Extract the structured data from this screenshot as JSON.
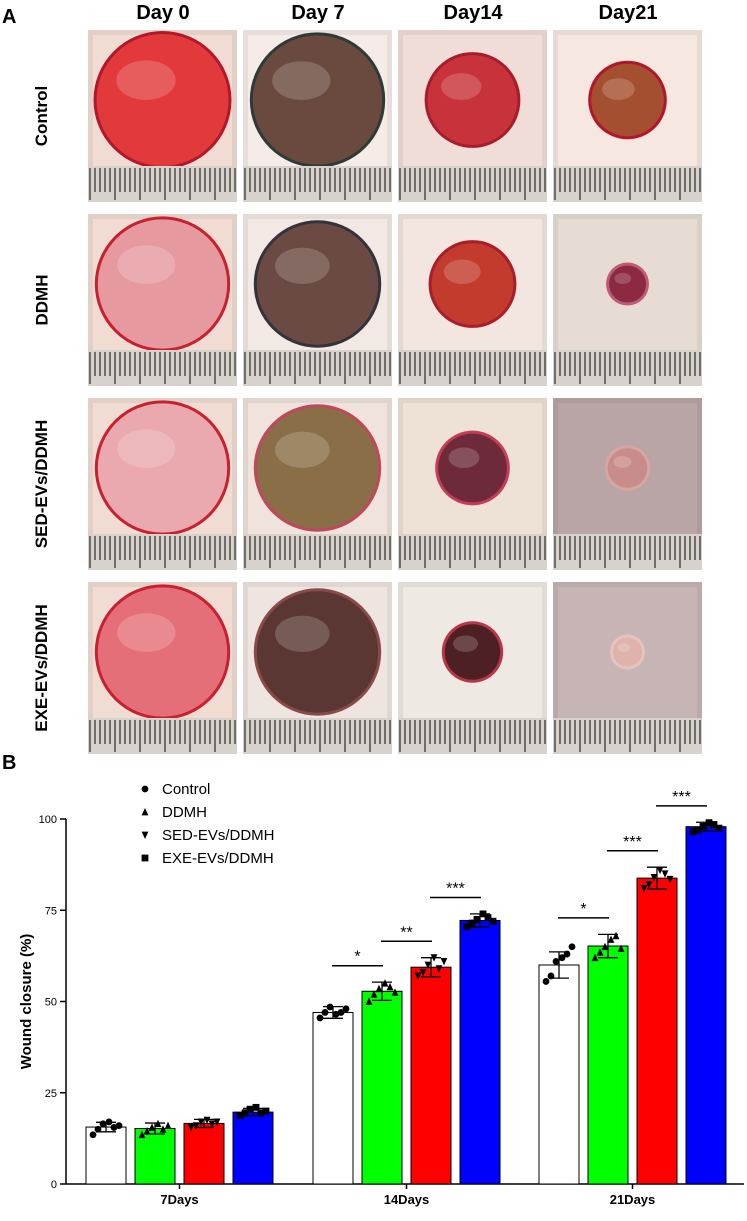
{
  "figure": {
    "panel_a_label": "A",
    "panel_b_label": "B",
    "columns": [
      "Day 0",
      "Day 7",
      "Day14",
      "Day21"
    ],
    "rows": [
      "Control",
      "DDMH",
      "SED-EVs/DDMH",
      "EXE-EVs/DDMH"
    ],
    "photos": [
      [
        {
          "skin": "#f1dcd3",
          "wound": "#e23a3a",
          "rim": "#b3172a",
          "scale": 1.0
        },
        {
          "skin": "#f5ece8",
          "wound": "#6a4a3f",
          "rim": "#2f3a37",
          "scale": 0.98
        },
        {
          "skin": "#f0ddd8",
          "wound": "#c8323a",
          "rim": "#a81d2b",
          "scale": 0.68
        },
        {
          "skin": "#f6e7e1",
          "wound": "#a45030",
          "rim": "#b3152a",
          "scale": 0.55
        }
      ],
      [
        {
          "skin": "#f1dcd3",
          "wound": "#e69aa0",
          "rim": "#c8202e",
          "scale": 0.98
        },
        {
          "skin": "#f3e9e4",
          "wound": "#6b4a43",
          "rim": "#34323a",
          "scale": 0.92
        },
        {
          "skin": "#f3e6e0",
          "wound": "#c23b2c",
          "rim": "#a81e2a",
          "scale": 0.62
        },
        {
          "skin": "#e6dcd4",
          "wound": "#8b2a40",
          "rim": "#c05a78",
          "scale": 0.28
        }
      ],
      [
        {
          "skin": "#f1dcd3",
          "wound": "#e9a9ae",
          "rim": "#c8202e",
          "scale": 0.98
        },
        {
          "skin": "#efe3db",
          "wound": "#8a6e47",
          "rim": "#c0485a",
          "scale": 0.92
        },
        {
          "skin": "#eee2d6",
          "wound": "#6c2a3a",
          "rim": "#c53c5a",
          "scale": 0.52
        },
        {
          "skin": "#b9a5a5",
          "wound": "#c88d8b",
          "rim": "#d6a6a2",
          "scale": 0.3
        }
      ],
      [
        {
          "skin": "#f1dcd3",
          "wound": "#e46f78",
          "rim": "#c8202e",
          "scale": 0.98
        },
        {
          "skin": "#efe5e0",
          "wound": "#5a3733",
          "rim": "#8a4a4a",
          "scale": 0.92
        },
        {
          "skin": "#eee9e3",
          "wound": "#4d2023",
          "rim": "#b8354a",
          "scale": 0.42
        },
        {
          "skin": "#c6b5b4",
          "wound": "#e0b2ac",
          "rim": "#e6c3bd",
          "scale": 0.22
        }
      ]
    ]
  },
  "chart_data": {
    "type": "bar",
    "title": "",
    "xlabel": "",
    "ylabel": "Wound closure (%)",
    "ylim": [
      0,
      100
    ],
    "yticks": [
      0,
      25,
      50,
      75,
      100
    ],
    "categories": [
      "7Days",
      "14Days",
      "21Days"
    ],
    "legend_position": "top-left",
    "error_bars": true,
    "series": [
      {
        "name": "Control",
        "marker": "circle",
        "color": "#ffffff",
        "values": [
          15.6,
          47.0,
          60.0
        ],
        "errors": [
          1.3,
          1.6,
          3.6
        ],
        "points": [
          [
            13.5,
            15.0,
            16.5,
            17.0,
            15.5,
            16.0
          ],
          [
            45.5,
            47.0,
            48.5,
            46.5,
            47.0,
            48.0
          ],
          [
            55.5,
            57.0,
            61.0,
            62.0,
            63.0,
            65.0
          ]
        ]
      },
      {
        "name": "DDMH",
        "marker": "triangle-up",
        "color": "#00ff00",
        "values": [
          15.2,
          52.8,
          65.2
        ],
        "errors": [
          1.5,
          2.5,
          3.2
        ],
        "points": [
          [
            13.5,
            14.5,
            15.5,
            16.5,
            15.0,
            16.0
          ],
          [
            50.0,
            52.0,
            53.5,
            55.0,
            54.0,
            52.5
          ],
          [
            62.0,
            63.5,
            65.0,
            67.0,
            68.0,
            64.5
          ]
        ]
      },
      {
        "name": "SED-EVs/DDMH",
        "marker": "triangle-down",
        "color": "#ff0000",
        "values": [
          16.6,
          59.4,
          83.8
        ],
        "errors": [
          1.1,
          2.6,
          3.0
        ],
        "points": [
          [
            15.5,
            16.0,
            17.0,
            17.5,
            16.5,
            17.0
          ],
          [
            57.0,
            58.0,
            60.0,
            62.0,
            59.0,
            61.0
          ],
          [
            81.0,
            82.0,
            84.0,
            86.0,
            85.0,
            83.5
          ]
        ]
      },
      {
        "name": "EXE-EVs/DDMH",
        "marker": "square",
        "color": "#0000ff",
        "values": [
          19.7,
          72.2,
          97.9
        ],
        "errors": [
          1.0,
          1.8,
          1.2
        ],
        "points": [
          [
            18.8,
            19.5,
            20.5,
            21.0,
            19.5,
            20.0
          ],
          [
            70.5,
            71.5,
            72.5,
            74.0,
            73.0,
            72.0
          ],
          [
            96.5,
            97.0,
            98.0,
            99.0,
            98.5,
            97.5
          ]
        ]
      }
    ],
    "significance": [
      {
        "category": 0,
        "from": 0,
        "to": 1,
        "label": ""
      },
      {
        "category": 1,
        "from": 0,
        "to": 1,
        "label": "*"
      },
      {
        "category": 1,
        "from": 1,
        "to": 2,
        "label": "**"
      },
      {
        "category": 1,
        "from": 2,
        "to": 3,
        "label": "***"
      },
      {
        "category": 2,
        "from": 0,
        "to": 1,
        "label": "*"
      },
      {
        "category": 2,
        "from": 1,
        "to": 2,
        "label": "***"
      },
      {
        "category": 2,
        "from": 2,
        "to": 3,
        "label": "***"
      }
    ]
  }
}
